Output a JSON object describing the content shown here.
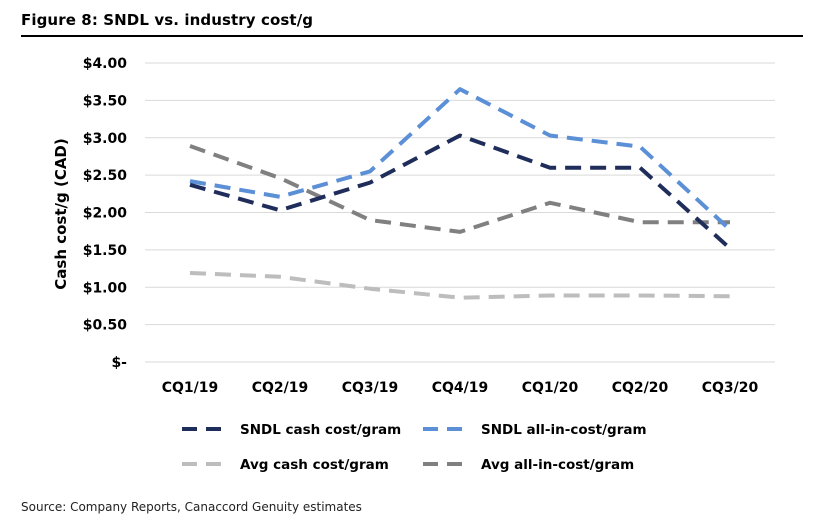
{
  "figure_title": "Figure 8: SNDL vs. industry cost/g",
  "source_note": "Source: Company Reports, Canaccord Genuity estimates",
  "chart_data": {
    "type": "line",
    "title": "",
    "xlabel": "",
    "ylabel": "Cash cost/g (CAD)",
    "ylim": [
      0,
      4.0
    ],
    "y_ticks": [
      0,
      0.5,
      1.0,
      1.5,
      2.0,
      2.5,
      3.0,
      3.5,
      4.0
    ],
    "y_tick_labels": [
      "$-",
      "$0.50",
      "$1.00",
      "$1.50",
      "$2.00",
      "$2.50",
      "$3.00",
      "$3.50",
      "$4.00"
    ],
    "grid": "horizontal",
    "legend_position": "bottom",
    "categories": [
      "CQ1/19",
      "CQ2/19",
      "CQ3/19",
      "CQ4/19",
      "CQ1/20",
      "CQ2/20",
      "CQ3/20"
    ],
    "series": [
      {
        "name": "SNDL cash cost/gram",
        "color": "#1f2d5a",
        "values": [
          2.37,
          2.03,
          2.4,
          3.03,
          2.6,
          2.6,
          1.52
        ]
      },
      {
        "name": "SNDL all-in-cost/gram",
        "color": "#5b8fd6",
        "values": [
          2.42,
          2.21,
          2.55,
          3.65,
          3.03,
          2.88,
          1.77
        ]
      },
      {
        "name": "Avg cash cost/gram",
        "color": "#bdbdbd",
        "values": [
          1.19,
          1.14,
          0.98,
          0.86,
          0.89,
          0.89,
          0.88
        ]
      },
      {
        "name": "Avg all-in-cost/gram",
        "color": "#808080",
        "values": [
          2.89,
          2.46,
          1.9,
          1.74,
          2.13,
          1.87,
          1.87
        ]
      }
    ]
  }
}
